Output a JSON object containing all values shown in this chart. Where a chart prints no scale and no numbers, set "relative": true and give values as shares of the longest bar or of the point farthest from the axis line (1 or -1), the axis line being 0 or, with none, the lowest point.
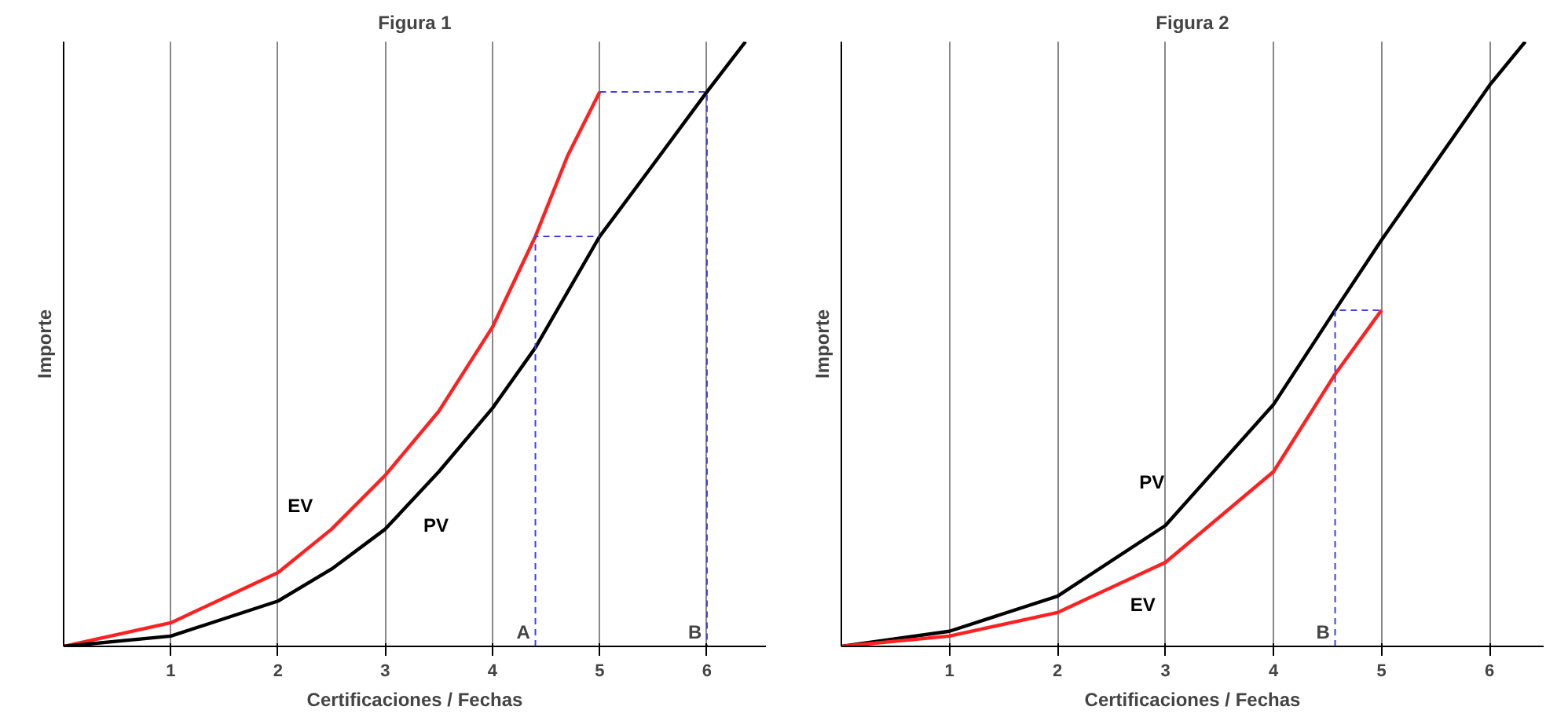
{
  "chart_data": [
    {
      "type": "line",
      "title": "Figura 1",
      "xlabel": "Certificaciones / Fechas",
      "ylabel": "Importe",
      "relative": true,
      "xlim": [
        0,
        6.55
      ],
      "xticks": [
        1,
        2,
        3,
        4,
        5,
        6
      ],
      "grid": "x",
      "series": [
        {
          "name": "EV",
          "color": "#ff2020",
          "x": [
            0,
            1,
            2,
            2.5,
            3,
            3.5,
            4,
            4.4,
            4.7,
            5
          ],
          "values": [
            0,
            0.039,
            0.122,
            0.194,
            0.283,
            0.389,
            0.528,
            0.678,
            0.811,
            0.917
          ]
        },
        {
          "name": "PV",
          "color": "#000000",
          "x": [
            0,
            1,
            2,
            2.5,
            3,
            3.5,
            4,
            4.4,
            5,
            5.5,
            6,
            6.36
          ],
          "values": [
            0,
            0.017,
            0.075,
            0.128,
            0.194,
            0.289,
            0.394,
            0.494,
            0.678,
            0.797,
            0.917,
            1.0
          ]
        },
        {
          "color": "#4040e0",
          "line_style": "dashed",
          "x": [
            4.4,
            4.4,
            5
          ],
          "values": [
            0,
            0.678,
            0.678
          ]
        },
        {
          "color": "#4040e0",
          "line_style": "dashed",
          "x": [
            5,
            6,
            6
          ],
          "values": [
            0.917,
            0.917,
            0
          ]
        }
      ],
      "annotations": [
        {
          "text": "A",
          "x": 4.4,
          "y": 0
        },
        {
          "text": "B",
          "x": 6,
          "y": 0
        }
      ]
    },
    {
      "type": "line",
      "title": "Figura 2",
      "xlabel": "Certificaciones / Fechas",
      "ylabel": "Importe",
      "relative": true,
      "xlim": [
        0,
        6.5
      ],
      "xticks": [
        1,
        2,
        3,
        4,
        5,
        6
      ],
      "grid": "x",
      "series": [
        {
          "name": "PV",
          "color": "#000000",
          "x": [
            0,
            1,
            2,
            3,
            4,
            4.57,
            5,
            5.5,
            6,
            6.33
          ],
          "values": [
            0,
            0.025,
            0.083,
            0.2,
            0.4,
            0.556,
            0.672,
            0.8,
            0.928,
            1.0
          ]
        },
        {
          "name": "EV",
          "color": "#ff2020",
          "x": [
            0,
            1,
            2,
            3,
            4,
            4.57,
            5
          ],
          "values": [
            0,
            0.017,
            0.056,
            0.139,
            0.289,
            0.45,
            0.556
          ]
        },
        {
          "color": "#4040e0",
          "line_style": "dashed",
          "x": [
            4.57,
            4.57,
            5
          ],
          "values": [
            0,
            0.556,
            0.556
          ]
        }
      ],
      "annotations": [
        {
          "text": "B",
          "x": 4.57,
          "y": 0
        }
      ]
    }
  ]
}
